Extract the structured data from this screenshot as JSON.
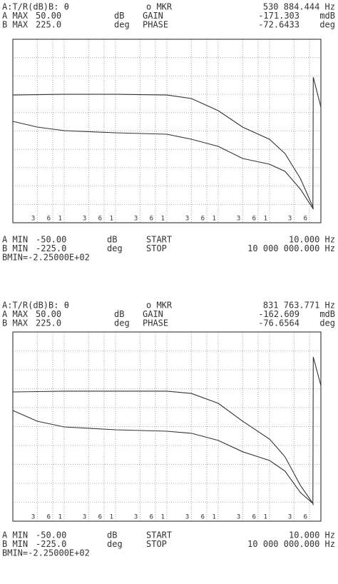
{
  "chart_data": [
    {
      "type": "line",
      "header": [
        [
          "A:T/R(dB)B: θ",
          "o MKR",
          "530 884.444 Hz"
        ],
        [
          "A MAX",
          "50.00",
          "dB",
          "GAIN",
          "-171.303",
          "mdB"
        ],
        [
          "B MAX",
          "225.0",
          "deg",
          "PHASE",
          "-72.6433",
          "deg"
        ]
      ],
      "footer": [
        [
          "A MIN",
          "-50.00",
          "dB",
          "START",
          "10.000 Hz"
        ],
        [
          "B MIN",
          "-225.0",
          "deg",
          "STOP",
          "10 000 000.000 Hz"
        ],
        [
          "BMIN=-2.25000E+02"
        ]
      ],
      "x_log": true,
      "xlim": [
        10,
        10000000
      ],
      "xticks": [
        {
          "value": 30,
          "label": "3"
        },
        {
          "value": 60,
          "label": "6"
        },
        {
          "value": 100,
          "label": "1"
        },
        {
          "value": 300,
          "label": "3"
        },
        {
          "value": 600,
          "label": "6"
        },
        {
          "value": 1000,
          "label": "1"
        },
        {
          "value": 3000,
          "label": "3"
        },
        {
          "value": 6000,
          "label": "6"
        },
        {
          "value": 10000,
          "label": "1"
        },
        {
          "value": 30000,
          "label": "3"
        },
        {
          "value": 60000,
          "label": "6"
        },
        {
          "value": 100000,
          "label": "1"
        },
        {
          "value": 300000,
          "label": "3"
        },
        {
          "value": 600000,
          "label": "6"
        },
        {
          "value": 1000000,
          "label": "1"
        },
        {
          "value": 3000000,
          "label": "3"
        },
        {
          "value": 6000000,
          "label": "6"
        }
      ],
      "ylim": [
        -50,
        50
      ],
      "yticks": [
        -50,
        -40,
        -30,
        -20,
        -10,
        0,
        10,
        20,
        30,
        40,
        50
      ],
      "y2lim": [
        -225,
        225
      ],
      "grid": true,
      "x": [
        10,
        30,
        100,
        1000,
        10000,
        30000,
        100000,
        300000,
        1000000,
        2000000,
        4000000,
        7000000,
        7100000,
        10000000
      ],
      "series": [
        {
          "color": "#333333",
          "values": [
            19.6,
            19.8,
            20,
            20,
            19.6,
            17.7,
            11.1,
            2.1,
            -4.5,
            -12.3,
            -25.9,
            -41.4,
            -42.5,
            null
          ]
        },
        {
          "color": "#333333",
          "axis": "y2",
          "values": [
            23.6,
            9.6,
            0.9,
            -4.4,
            -7.9,
            -20.1,
            -37.6,
            -67.4,
            -81.4,
            -98.9,
            -142.7,
            -190,
            132,
            58.7
          ]
        }
      ]
    },
    {
      "type": "line",
      "header": [
        [
          "A:T/R(dB)B: θ",
          "o MKR",
          "831 763.771 Hz"
        ],
        [
          "A MAX",
          "50.00",
          "dB",
          "GAIN",
          "-162.609",
          "mdB"
        ],
        [
          "B MAX",
          "225.0",
          "deg",
          "PHASE",
          "-76.6564",
          "deg"
        ]
      ],
      "footer": [
        [
          "A MIN",
          "-50.00",
          "dB",
          "START",
          "10.000 Hz"
        ],
        [
          "B MIN",
          "-225.0",
          "deg",
          "STOP",
          "10 000 000.000 Hz"
        ],
        [
          "BMIN=-2.25000E+02"
        ]
      ],
      "x_log": true,
      "xlim": [
        10,
        10000000
      ],
      "xticks": [
        {
          "value": 30,
          "label": "3"
        },
        {
          "value": 60,
          "label": "6"
        },
        {
          "value": 100,
          "label": "1"
        },
        {
          "value": 300,
          "label": "3"
        },
        {
          "value": 600,
          "label": "6"
        },
        {
          "value": 1000,
          "label": "1"
        },
        {
          "value": 3000,
          "label": "3"
        },
        {
          "value": 6000,
          "label": "6"
        },
        {
          "value": 10000,
          "label": "1"
        },
        {
          "value": 30000,
          "label": "3"
        },
        {
          "value": 60000,
          "label": "6"
        },
        {
          "value": 100000,
          "label": "1"
        },
        {
          "value": 300000,
          "label": "3"
        },
        {
          "value": 600000,
          "label": "6"
        },
        {
          "value": 1000000,
          "label": "1"
        },
        {
          "value": 3000000,
          "label": "3"
        },
        {
          "value": 6000000,
          "label": "6"
        }
      ],
      "ylim": [
        -50,
        50
      ],
      "yticks": [
        -50,
        -40,
        -30,
        -20,
        -10,
        0,
        10,
        20,
        30,
        40,
        50
      ],
      "y2lim": [
        -225,
        225
      ],
      "grid": true,
      "x": [
        10,
        30,
        100,
        1000,
        10000,
        30000,
        100000,
        300000,
        1000000,
        2000000,
        4000000,
        7000000,
        7100000,
        10000000
      ],
      "series": [
        {
          "color": "#333333",
          "values": [
            18.3,
            18.5,
            18.7,
            18.7,
            18.7,
            17.5,
            12.3,
            2.8,
            -6.6,
            -16,
            -31.1,
            -40.6,
            -41.5,
            null
          ]
        },
        {
          "color": "#333333",
          "axis": "y2",
          "values": [
            38.2,
            12.7,
            -0.8,
            -7.6,
            -11,
            -16,
            -33,
            -60,
            -80.7,
            -106,
            -157,
            -182.5,
            165.6,
            97.6
          ]
        }
      ]
    }
  ]
}
